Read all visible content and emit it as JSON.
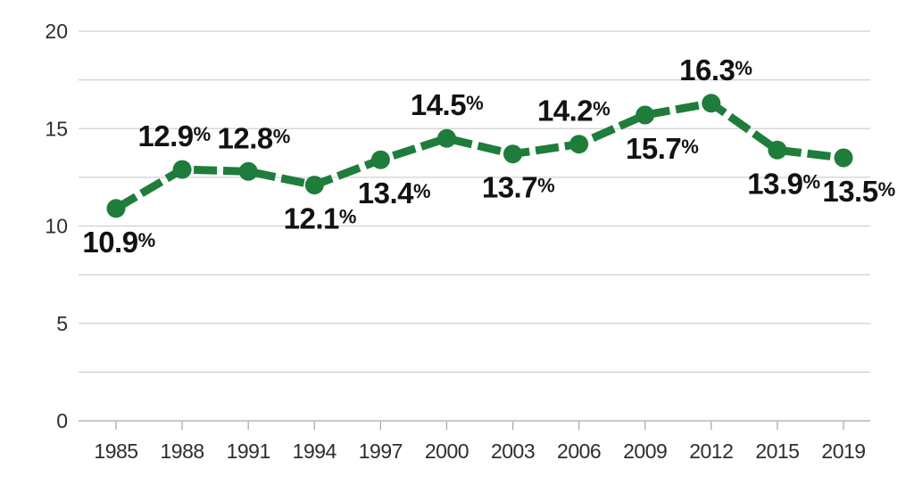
{
  "chart_data": {
    "type": "line",
    "title": "",
    "categories": [
      "1985",
      "1988",
      "1991",
      "1994",
      "1997",
      "2000",
      "2003",
      "2006",
      "2009",
      "2012",
      "2015",
      "2019"
    ],
    "series": [
      {
        "name": "percentage",
        "values": [
          10.9,
          12.9,
          12.8,
          12.1,
          13.4,
          14.5,
          13.7,
          14.2,
          15.7,
          16.3,
          13.9,
          13.5
        ]
      }
    ],
    "point_labels": [
      {
        "text": "10.9",
        "suffix": "%",
        "side": "below",
        "dx": 3
      },
      {
        "text": "12.9",
        "suffix": "%",
        "side": "above",
        "dx": -9
      },
      {
        "text": "12.8",
        "suffix": "%",
        "side": "above",
        "dx": 6
      },
      {
        "text": "12.1",
        "suffix": "%",
        "side": "below",
        "dx": 6
      },
      {
        "text": "13.4",
        "suffix": "%",
        "side": "below",
        "dx": 15
      },
      {
        "text": "14.5",
        "suffix": "%",
        "side": "above",
        "dx": 0
      },
      {
        "text": "13.7",
        "suffix": "%",
        "side": "below",
        "dx": 6
      },
      {
        "text": "14.2",
        "suffix": "%",
        "side": "above",
        "dx": -6
      },
      {
        "text": "15.7",
        "suffix": "%",
        "side": "below",
        "dx": 19
      },
      {
        "text": "16.3",
        "suffix": "%",
        "side": "above",
        "dx": 5
      },
      {
        "text": "13.9",
        "suffix": "%",
        "side": "below",
        "dx": 7
      },
      {
        "text": "13.5",
        "suffix": "%",
        "side": "below",
        "dx": 17
      }
    ],
    "xlabel": "",
    "ylabel": "",
    "ylim": [
      0,
      20
    ],
    "y_major_ticks": [
      0,
      5,
      10,
      15,
      20
    ],
    "y_minor_step": 2.5,
    "grid": true,
    "legend": "none",
    "line_style": "dashed",
    "marker": "circle"
  },
  "style": {
    "line_color": "#1e7d3a",
    "marker_color": "#1e7d3a",
    "grid_color": "#d0d0d0",
    "axis_line_color": "#b5b5b5",
    "tick_color": "#a8a8a8",
    "axis_label_color": "#2e2e2e",
    "point_label_color": "#121212",
    "background": "#ffffff"
  }
}
